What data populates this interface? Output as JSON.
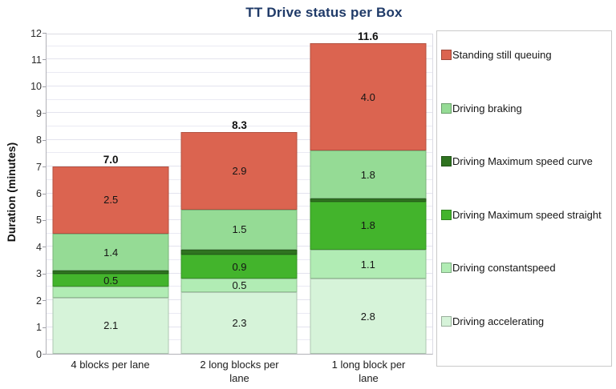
{
  "title": "TT Drive status per Box",
  "chart_data": {
    "type": "bar",
    "stacked": true,
    "title": "TT Drive status per Box",
    "ylabel": "Duration (minutes)",
    "xlabel": "",
    "ylim": [
      0,
      12
    ],
    "ytick_step": 1,
    "gridline_step": 0.5,
    "grid": true,
    "legend_position": "right",
    "categories": [
      "4 blocks per lane",
      "2 long blocks per lane",
      "1 long block per lane"
    ],
    "totals": [
      "7.0",
      "8.3",
      "11.6"
    ],
    "series": [
      {
        "name": "Driving accelerating",
        "color": "#d6f3d9",
        "values": [
          2.1,
          2.3,
          2.8
        ],
        "labels": [
          "2.1",
          "2.3",
          "2.8"
        ]
      },
      {
        "name": "Driving constantspeed",
        "color": "#b1ecb4",
        "values": [
          0.4,
          0.5,
          1.1
        ],
        "labels": [
          "",
          "0.5",
          "1.1"
        ]
      },
      {
        "name": "Driving Maximum speed straight",
        "color": "#43b42c",
        "values": [
          0.5,
          0.9,
          1.8
        ],
        "labels": [
          "0.5",
          "0.9",
          "1.8"
        ]
      },
      {
        "name": "Driving Maximum speed curve",
        "color": "#2f7320",
        "values": [
          0.1,
          0.2,
          0.1
        ],
        "labels": [
          "",
          "",
          ""
        ]
      },
      {
        "name": "Driving braking",
        "color": "#95db95",
        "values": [
          1.4,
          1.5,
          1.8
        ],
        "labels": [
          "1.4",
          "1.5",
          "1.8"
        ]
      },
      {
        "name": "Standing still queuing",
        "color": "#db6450",
        "values": [
          2.5,
          2.9,
          4.0
        ],
        "labels": [
          "2.5",
          "2.9",
          "4.0"
        ]
      }
    ],
    "legend_entries": [
      "Standing still queuing",
      "Driving braking",
      "Driving Maximum speed curve",
      "Driving Maximum speed straight",
      "Driving constantspeed",
      "Driving accelerating"
    ]
  },
  "colors": {
    "title": "#1f3a68",
    "grid": "#eaeaf3",
    "axis": "#b2b2b8",
    "value_label": "#151515",
    "queuing_red": "#db6450",
    "braking_green": "#95db95",
    "curve_dark_green": "#2f7320",
    "straight_green": "#43b42c",
    "constantspeed_green": "#b1ecb4",
    "accelerating_green": "#d6f3d9"
  }
}
